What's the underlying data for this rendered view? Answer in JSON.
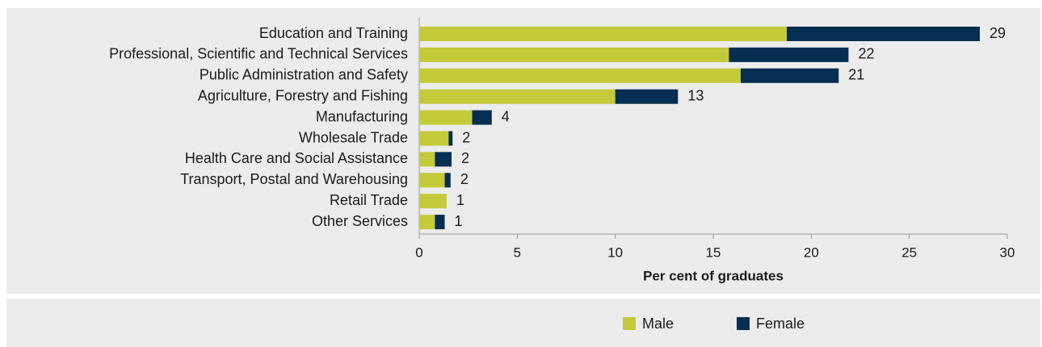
{
  "chart_data": {
    "type": "stacked_barh",
    "xlabel": "Per cent of graduates",
    "categories": [
      "Education and Training",
      "Professional, Scientific and Technical Services",
      "Public Administration and Safety",
      "Agriculture, Forestry and Fishing",
      "Manufacturing",
      "Wholesale Trade",
      "Health Care and Social Assistance",
      "Transport, Postal and Warehousing",
      "Retail Trade",
      "Other Services"
    ],
    "series": [
      {
        "name": "Male",
        "color": "#c3cb3a",
        "values": [
          18.75,
          15.8,
          16.4,
          10.0,
          2.7,
          1.5,
          0.8,
          1.3,
          1.4,
          0.8
        ]
      },
      {
        "name": "Female",
        "color": "#062e52",
        "values": [
          9.85,
          6.1,
          5.0,
          3.2,
          1.0,
          0.2,
          0.85,
          0.3,
          0,
          0.5
        ]
      }
    ],
    "total_labels": [
      "29",
      "22",
      "21",
      "13",
      "4",
      "2",
      "2",
      "2",
      "1",
      "1"
    ],
    "xlim": [
      0,
      30
    ],
    "xticks": [
      0,
      5,
      10,
      15,
      20,
      25,
      30
    ]
  }
}
